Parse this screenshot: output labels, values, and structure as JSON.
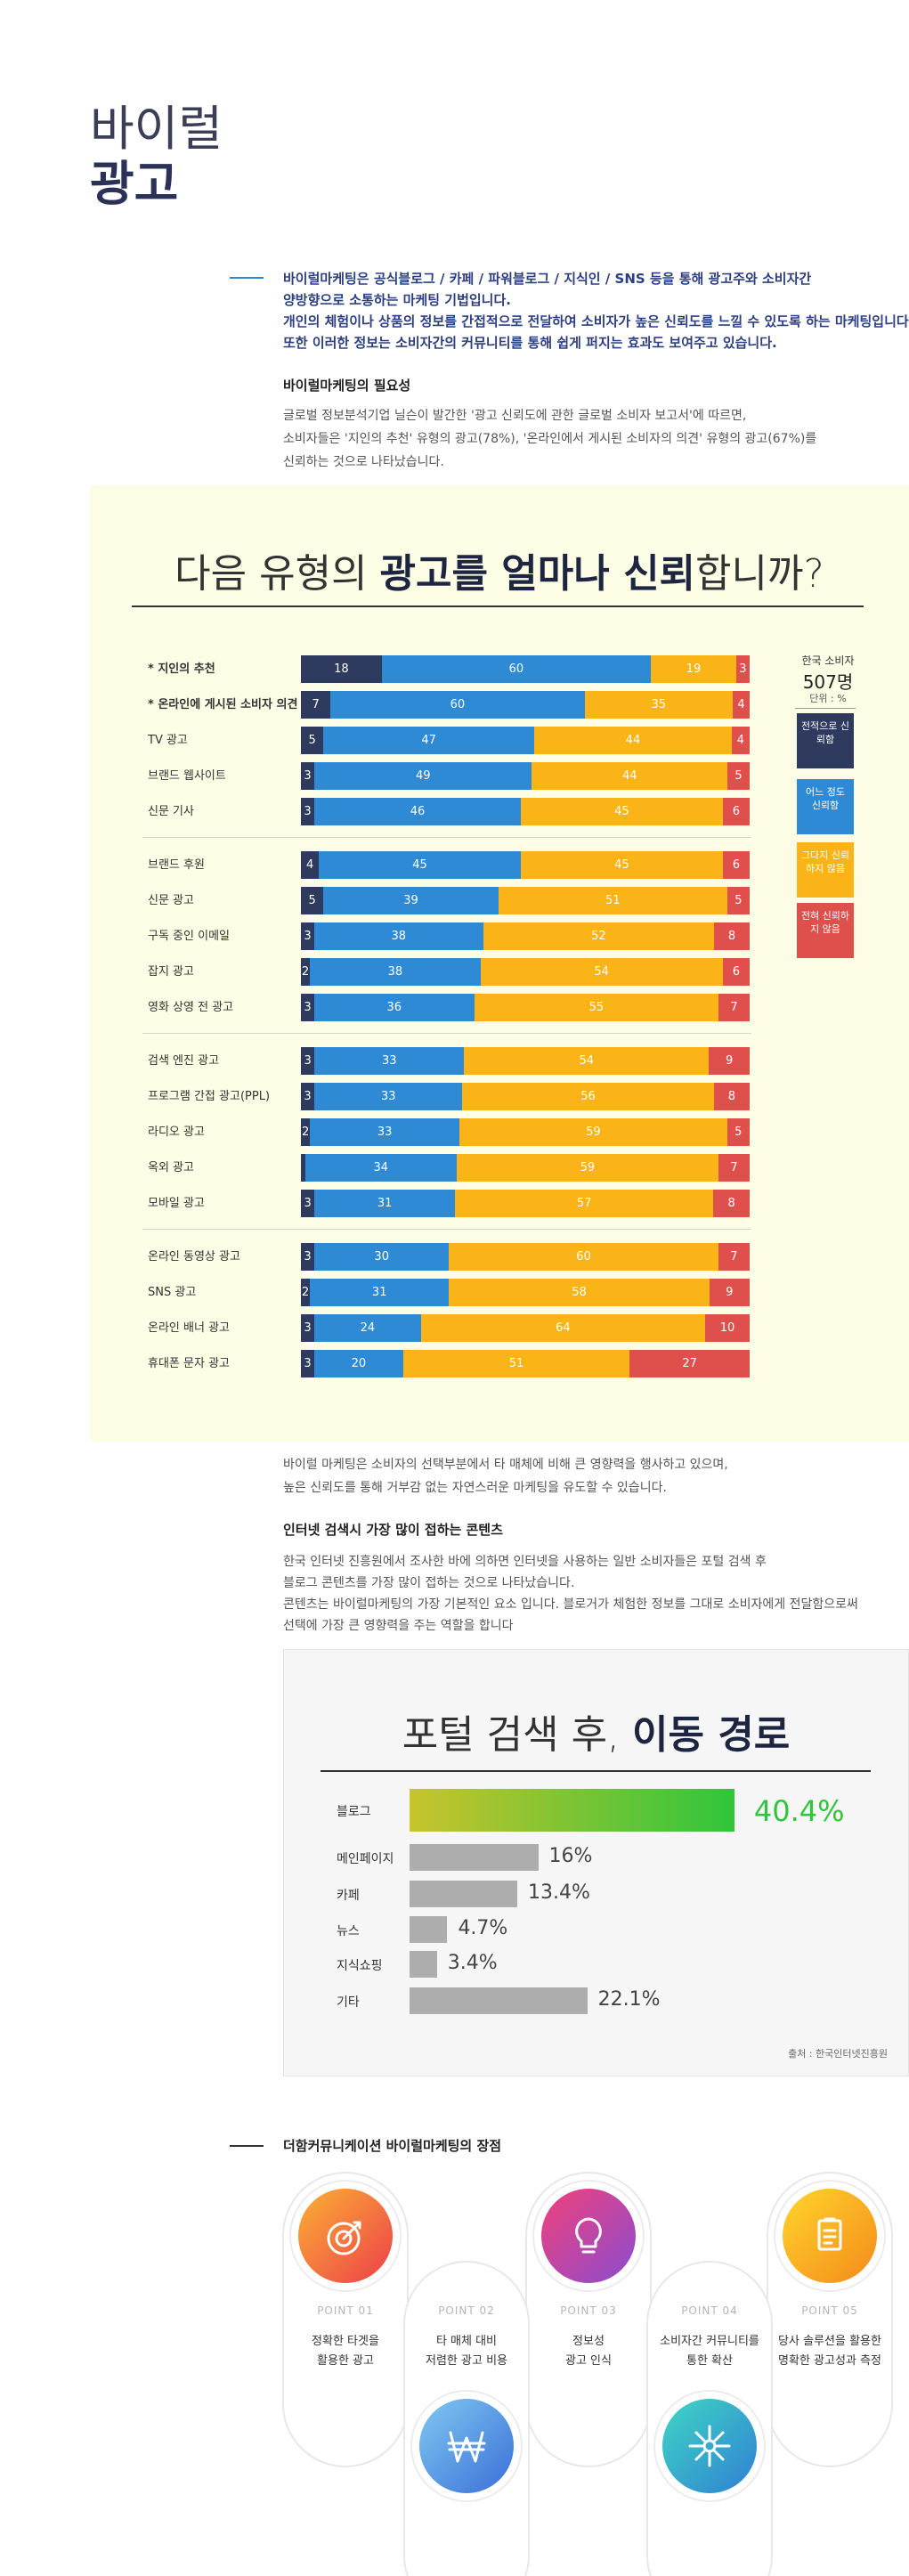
{
  "header": {
    "title_lines": [
      "바이럴",
      "광고"
    ]
  },
  "intro": {
    "lines": [
      "바이럴마케팅은 공식블로그 / 카페 / 파워블로그 / 지식인 / SNS 등을 통해 광고주와 소비자간",
      "양방향으로 소통하는 마케팅 기법입니다.",
      "개인의 체험이나 상품의 정보를 간접적으로 전달하여 소비자가 높은 신뢰도를 느낄 수 있도록 하는 마케팅입니다.",
      "또한 이러한 정보는 소비자간의 커뮤니티를 통해 쉽게 퍼지는 효과도 보여주고 있습니다."
    ],
    "need_heading": "바이럴마케팅의 필요성",
    "need_lines": [
      "글로벌 정보분석기업 닐슨이 발간한 '광고 신뢰도에 관한 글로벌 소비자 보고서'에 따르면,",
      "소비자들은 '지인의 추천' 유형의 광고(78%), '온라인에서 게시된 소비자의 의견' 유형의 광고(67%)를",
      "신뢰하는 것으로 나타났습니다."
    ]
  },
  "chart_data": [
    {
      "type": "stacked_bar_h",
      "title_parts": [
        "다음 유형의 ",
        "광고를 얼마나 신뢰",
        "합니까?"
      ],
      "categories": [
        "* 지인의 추천",
        "* 온라인에 게시된 소비자 의견",
        "TV 광고",
        "브랜드 웹사이트",
        "신문 기사",
        "브랜드 후원",
        "신문 광고",
        "구독 중인 이메일",
        "잡지 광고",
        "영화 상영 전 광고",
        "검색 엔진 광고",
        "프로그램 간접 광고(PPL)",
        "라디오 광고",
        "옥외 광고",
        "모바일 광고",
        "온라인 동영상 광고",
        "SNS 광고",
        "온라인 배너 광고",
        "휴대폰 문자 광고"
      ],
      "series": [
        {
          "name": "전적으로 신뢰함",
          "color": "#2e3a5e",
          "values": [
            18,
            7,
            5,
            3,
            3,
            4,
            5,
            3,
            2,
            3,
            3,
            3,
            2,
            1,
            3,
            3,
            2,
            3,
            3
          ]
        },
        {
          "name": "어느 정도 신뢰함",
          "color": "#2f8ad6",
          "values": [
            60,
            60,
            47,
            49,
            46,
            45,
            39,
            38,
            38,
            36,
            33,
            33,
            33,
            34,
            31,
            30,
            31,
            24,
            20
          ]
        },
        {
          "name": "그다지 신뢰하지 않음",
          "color": "#fbb417",
          "values": [
            19,
            35,
            44,
            44,
            45,
            45,
            51,
            52,
            54,
            55,
            54,
            56,
            59,
            59,
            57,
            60,
            58,
            64,
            51
          ]
        },
        {
          "name": "전혀 신뢰하지 않음",
          "color": "#df4f4c",
          "values": [
            3,
            4,
            4,
            5,
            6,
            6,
            5,
            8,
            6,
            7,
            9,
            8,
            5,
            7,
            8,
            7,
            9,
            10,
            27
          ]
        }
      ],
      "legend_title": "한국 소비자",
      "legend_count": "507명",
      "unit": "단위 : %"
    },
    {
      "type": "bar_h",
      "title_parts": [
        "포털 검색 후, ",
        "이동 경로"
      ],
      "categories": [
        "블로그",
        "메인페이지",
        "카페",
        "뉴스",
        "지식쇼핑",
        "기타"
      ],
      "values": [
        40.4,
        16,
        13.4,
        4.7,
        3.4,
        22.1
      ],
      "value_labels": [
        "40.4%",
        "16%",
        "13.4%",
        "4.7%",
        "3.4%",
        "22.1%"
      ],
      "color": "#adadad",
      "highlight_color": "#2fc53c",
      "xlim": [
        0,
        41
      ],
      "source": "출처 : 한국인터넷진흥원"
    }
  ],
  "content": {
    "lines": [
      "바이럴 마케팅은 소비자의 선택부분에서 타 매체에 비해 큰 영향력을 행사하고 있으며,",
      "높은 신뢰도를 통해 거부감 없는 자연스러운 마케팅을 유도할 수 있습니다."
    ],
    "heading": "인터넷 검색시 가장 많이 접하는 콘텐츠",
    "para": [
      "한국 인터넷 진흥원에서 조사한 바에 의하면 인터넷을 사용하는 일반 소비자들은 포털 검색 후",
      "블로그 콘텐츠를 가장 많이 접하는 것으로 나타났습니다.",
      "콘텐츠는 바이럴마케팅의 가장 기본적인 요소 입니다. 블로거가 체험한 정보를 그대로 소비자에게 전달함으로써",
      "선택에 가장 큰 영향력을 주는 역할을 합니다"
    ]
  },
  "strengths": {
    "heading": "더함커뮤니케이션 바이럴마케팅의 장점",
    "points": [
      {
        "label": "POINT 01",
        "lines": [
          "정확한 타겟을",
          "활용한 광고"
        ]
      },
      {
        "label": "POINT 02",
        "lines": [
          "타 매체 대비",
          "저렴한 광고 비용"
        ]
      },
      {
        "label": "POINT 03",
        "lines": [
          "정보성",
          "광고 인식"
        ]
      },
      {
        "label": "POINT 04",
        "lines": [
          "소비자간 커뮤니티를",
          "통한 확산"
        ]
      },
      {
        "label": "POINT 05",
        "lines": [
          "당사 솔루션을 활용한",
          "명확한 광고성과 측정"
        ]
      }
    ]
  }
}
